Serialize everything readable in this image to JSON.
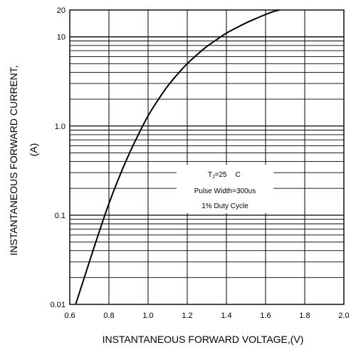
{
  "chart_data": {
    "type": "line",
    "xlabel": "INSTANTANEOUS FORWARD VOLTAGE,(V)",
    "ylabel_line1": "INSTANTANEOUS FORWARD CURRENT,",
    "ylabel_line2": "(A)",
    "x_ticks": [
      "0.6",
      "0.8",
      "1.0",
      "1.2",
      "1.4",
      "1.6",
      "1.8",
      "2.0"
    ],
    "y_ticks": [
      "0.01",
      "0.1",
      "1.0",
      "10",
      "20"
    ],
    "xlim": [
      0.6,
      2.0
    ],
    "ylim": [
      0.01,
      20
    ],
    "y_scale": "log",
    "grid": true,
    "series": [
      {
        "x": [
          0.63,
          0.66,
          0.7,
          0.75,
          0.8,
          0.85,
          0.9,
          0.95,
          1.0,
          1.05,
          1.1,
          1.15,
          1.2,
          1.25,
          1.3,
          1.35,
          1.4,
          1.45,
          1.5,
          1.55,
          1.6,
          1.64,
          1.67
        ],
        "y": [
          0.01,
          0.016,
          0.03,
          0.065,
          0.135,
          0.26,
          0.47,
          0.8,
          1.3,
          1.95,
          2.8,
          3.8,
          5.0,
          6.3,
          7.8,
          9.3,
          11.0,
          12.6,
          14.3,
          16.0,
          17.8,
          19.2,
          20.0
        ]
      }
    ],
    "annotation": {
      "line1_symbol": "T",
      "line1_subscript": "J",
      "line1_value": "=25",
      "line1_unit": "C",
      "line2": "Pulse Width=300us",
      "line3": "1% Duty Cycle"
    }
  }
}
